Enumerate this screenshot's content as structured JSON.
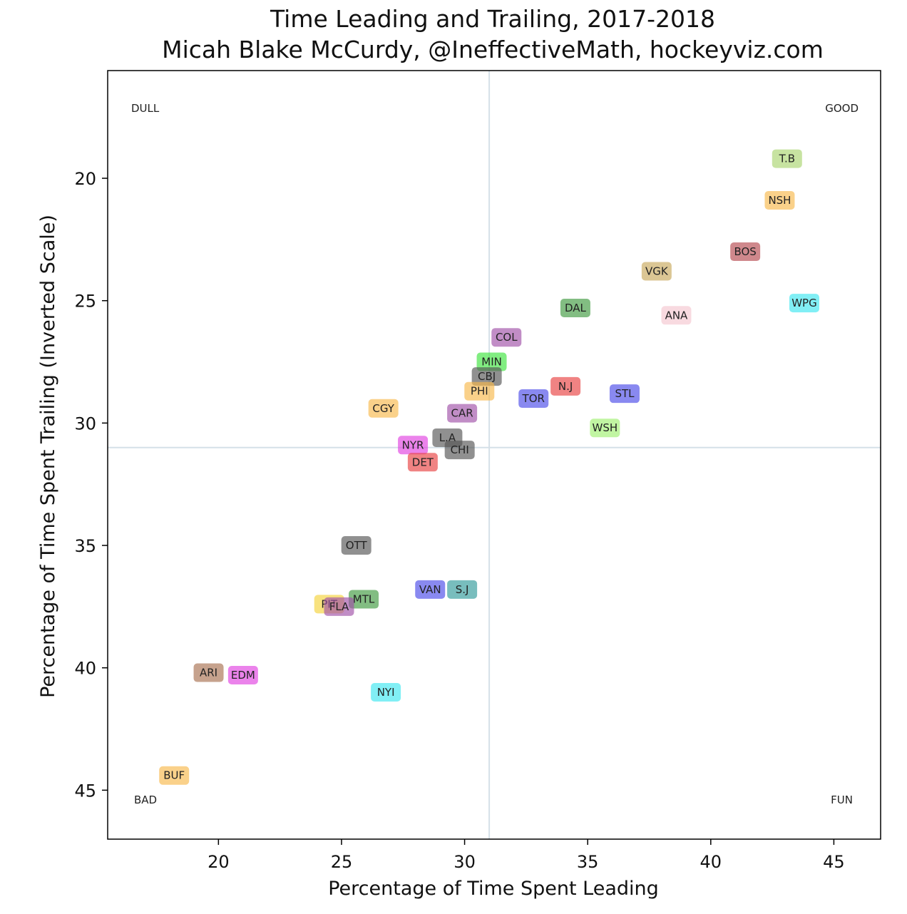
{
  "chart_data": {
    "type": "scatter",
    "title": "Time Leading and Trailing, 2017-2018",
    "subtitle": "Micah Blake McCurdy, @IneffectiveMath, hockeyviz.com",
    "xlabel": "Percentage of Time Spent Leading",
    "ylabel": "Percentage of Time Spent Trailing (Inverted Scale)",
    "xlim": [
      15.5,
      46.9
    ],
    "ylim": [
      47.0,
      15.6
    ],
    "y_inverted": true,
    "xticks": [
      20,
      25,
      30,
      35,
      40,
      45
    ],
    "yticks": [
      20,
      25,
      30,
      35,
      40,
      45
    ],
    "reference_lines": {
      "x": 31.0,
      "y": 31.0
    },
    "corner_labels": {
      "top_left": "DULL",
      "top_right": "GOOD",
      "bottom_left": "BAD",
      "bottom_right": "FUN"
    },
    "points": [
      {
        "team": "T.B",
        "x": 43.1,
        "y": 19.2,
        "color": "#a9d46f"
      },
      {
        "team": "NSH",
        "x": 42.8,
        "y": 20.9,
        "color": "#f7b84b"
      },
      {
        "team": "BOS",
        "x": 41.4,
        "y": 23.0,
        "color": "#b5484e"
      },
      {
        "team": "VGK",
        "x": 37.8,
        "y": 23.8,
        "color": "#c8a85a"
      },
      {
        "team": "WPG",
        "x": 43.8,
        "y": 25.1,
        "color": "#3de6f0"
      },
      {
        "team": "DAL",
        "x": 34.5,
        "y": 25.3,
        "color": "#3f9a3f"
      },
      {
        "team": "ANA",
        "x": 38.6,
        "y": 25.6,
        "color": "#f4c6cf"
      },
      {
        "team": "COL",
        "x": 31.7,
        "y": 26.5,
        "color": "#a050a8"
      },
      {
        "team": "MIN",
        "x": 31.1,
        "y": 27.5,
        "color": "#3ee33e"
      },
      {
        "team": "CBJ",
        "x": 30.9,
        "y": 28.1,
        "color": "#555555"
      },
      {
        "team": "PHI",
        "x": 30.6,
        "y": 28.7,
        "color": "#f7b84b"
      },
      {
        "team": "N.J",
        "x": 34.1,
        "y": 28.5,
        "color": "#e84040"
      },
      {
        "team": "STL",
        "x": 36.5,
        "y": 28.8,
        "color": "#4a4ae8"
      },
      {
        "team": "TOR",
        "x": 32.8,
        "y": 29.0,
        "color": "#4a4ae8"
      },
      {
        "team": "CGY",
        "x": 26.7,
        "y": 29.4,
        "color": "#f7b84b"
      },
      {
        "team": "CAR",
        "x": 29.9,
        "y": 29.6,
        "color": "#a050a8"
      },
      {
        "team": "WSH",
        "x": 35.7,
        "y": 30.2,
        "color": "#a0f070"
      },
      {
        "team": "L.A",
        "x": 29.3,
        "y": 30.6,
        "color": "#555555"
      },
      {
        "team": "NYR",
        "x": 27.9,
        "y": 30.9,
        "color": "#e040e0"
      },
      {
        "team": "CHI",
        "x": 29.8,
        "y": 31.1,
        "color": "#555555"
      },
      {
        "team": "DET",
        "x": 28.3,
        "y": 31.6,
        "color": "#e84040"
      },
      {
        "team": "OTT",
        "x": 25.6,
        "y": 35.0,
        "color": "#555555"
      },
      {
        "team": "VAN",
        "x": 28.6,
        "y": 36.8,
        "color": "#4a4ae8"
      },
      {
        "team": "S.J",
        "x": 29.9,
        "y": 36.8,
        "color": "#2f9a9a"
      },
      {
        "team": "PIT",
        "x": 24.5,
        "y": 37.4,
        "color": "#f4d23a"
      },
      {
        "team": "MTL",
        "x": 25.9,
        "y": 37.2,
        "color": "#3f9a3f"
      },
      {
        "team": "FLA",
        "x": 24.9,
        "y": 37.5,
        "color": "#a050a8"
      },
      {
        "team": "ARI",
        "x": 19.6,
        "y": 40.2,
        "color": "#a87050"
      },
      {
        "team": "EDM",
        "x": 21.0,
        "y": 40.3,
        "color": "#e040e0"
      },
      {
        "team": "NYI",
        "x": 26.8,
        "y": 41.0,
        "color": "#3de6f0"
      },
      {
        "team": "BUF",
        "x": 18.2,
        "y": 44.4,
        "color": "#f7b84b"
      }
    ]
  }
}
